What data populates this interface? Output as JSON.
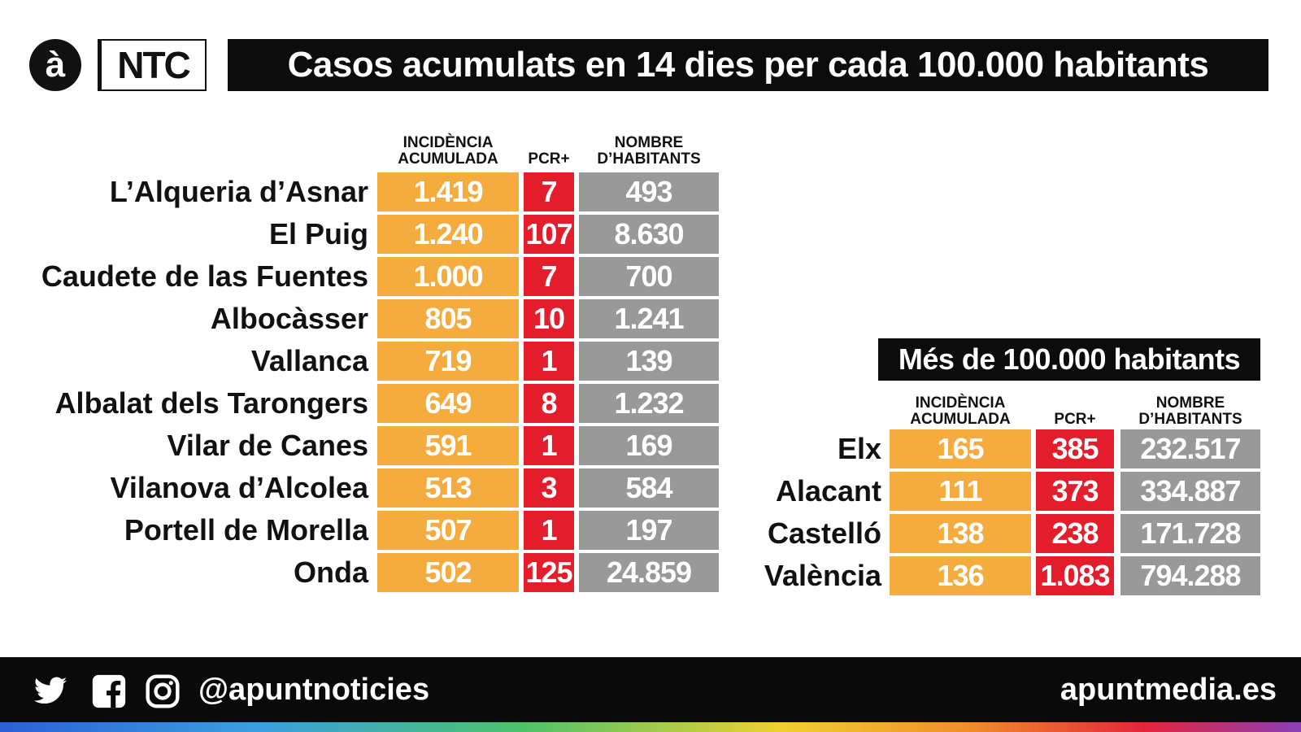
{
  "header": {
    "logo_a": "à",
    "logo_ntc": "NTC",
    "title": "Casos acumulats en 14 dies per cada 100.000 habitants"
  },
  "colors": {
    "incidence": "#f5ac3f",
    "pcr": "#e31d2b",
    "population": "#999999",
    "dark": "#0c0c0c"
  },
  "left_table": {
    "headers": {
      "incidence_line1": "INCIDÈNCIA",
      "incidence_line2": "ACUMULADA",
      "pcr": "PCR+",
      "population_line1": "NOMBRE",
      "population_line2": "D’HABITANTS"
    },
    "rows": [
      {
        "name": "L’Alqueria d’Asnar",
        "incidence": "1.419",
        "pcr": "7",
        "population": "493"
      },
      {
        "name": "El Puig",
        "incidence": "1.240",
        "pcr": "107",
        "population": "8.630"
      },
      {
        "name": "Caudete de las Fuentes",
        "incidence": "1.000",
        "pcr": "7",
        "population": "700"
      },
      {
        "name": "Albocàsser",
        "incidence": "805",
        "pcr": "10",
        "population": "1.241"
      },
      {
        "name": "Vallanca",
        "incidence": "719",
        "pcr": "1",
        "population": "139"
      },
      {
        "name": "Albalat dels Tarongers",
        "incidence": "649",
        "pcr": "8",
        "population": "1.232"
      },
      {
        "name": "Vilar de Canes",
        "incidence": "591",
        "pcr": "1",
        "population": "169"
      },
      {
        "name": "Vilanova d’Alcolea",
        "incidence": "513",
        "pcr": "3",
        "population": "584"
      },
      {
        "name": "Portell de Morella",
        "incidence": "507",
        "pcr": "1",
        "population": "197"
      },
      {
        "name": "Onda",
        "incidence": "502",
        "pcr": "125",
        "population": "24.859"
      }
    ]
  },
  "right_table": {
    "subtitle": "Més de 100.000 habitants",
    "headers": {
      "incidence_line1": "INCIDÈNCIA",
      "incidence_line2": "ACUMULADA",
      "pcr": "PCR+",
      "population_line1": "NOMBRE",
      "population_line2": "D’HABITANTS"
    },
    "rows": [
      {
        "name": "Elx",
        "incidence": "165",
        "pcr": "385",
        "population": "232.517"
      },
      {
        "name": "Alacant",
        "incidence": "111",
        "pcr": "373",
        "population": "334.887"
      },
      {
        "name": "Castelló",
        "incidence": "138",
        "pcr": "238",
        "population": "171.728"
      },
      {
        "name": "València",
        "incidence": "136",
        "pcr": "1.083",
        "population": "794.288"
      }
    ]
  },
  "footer": {
    "icons": [
      "twitter-icon",
      "facebook-icon",
      "instagram-icon"
    ],
    "handle": "@apuntnoticies",
    "site": "apuntmedia.es"
  }
}
